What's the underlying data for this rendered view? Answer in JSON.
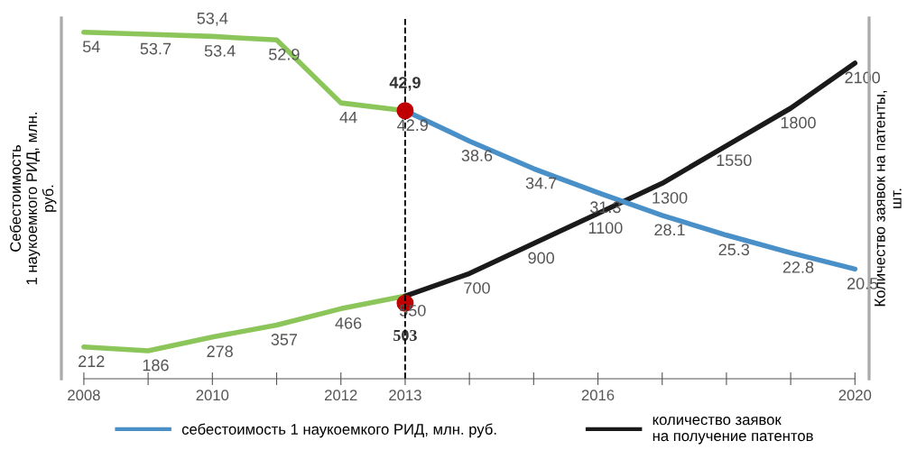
{
  "chart_data": {
    "type": "line",
    "xlabel": null,
    "ylabel": "Себестоимость\n1 наукоемкого РИД, млн.\nруб.",
    "y2label": "Количество заявок на патенты,\nшт.",
    "xlim": [
      2007.65,
      2020.22
    ],
    "xticks": [
      2008,
      {
        "value": 2009,
        "label": null
      },
      2010,
      {
        "value": 2011,
        "label": null
      },
      2012,
      2013,
      {
        "value": 2014,
        "label": null
      },
      {
        "value": 2015,
        "label": null
      },
      2016,
      {
        "value": 2017,
        "label": null
      },
      {
        "value": 2018,
        "label": null
      },
      {
        "value": 2019,
        "label": null
      },
      2020
    ],
    "ylim": [
      5,
      56
    ],
    "y2lim": [
      0,
      2400
    ],
    "tick_labels": "x",
    "grid": false,
    "legend": "bottom",
    "marker": "none",
    "line_style": "solid",
    "series": [
      {
        "color": "#8cc65a",
        "x": [
          2008,
          2009,
          2010,
          2011,
          2012,
          2013
        ],
        "values": [
          54,
          53.7,
          53.4,
          52.9,
          44,
          42.9
        ],
        "value_labels": [
          "54",
          "53.7",
          "53.4",
          "52.9",
          "44",
          null
        ]
      },
      {
        "name": "себестоимость 1 наукоемкого РИД, млн. руб.",
        "color": "#4a90c8",
        "x": [
          2013,
          2014,
          2015,
          2016,
          2017,
          2018,
          2019,
          2020
        ],
        "values": [
          42.9,
          38.6,
          34.7,
          31.3,
          28.1,
          25.3,
          22.8,
          20.5
        ],
        "value_labels": [
          "42.9",
          "38.6",
          "34.7",
          "31.3",
          "28.1",
          "25.3",
          "22.8",
          "20.5"
        ]
      },
      {
        "axis": "y2",
        "color": "#8cc65a",
        "x": [
          2008,
          2009,
          2010,
          2011,
          2012,
          2013
        ],
        "values": [
          212,
          186,
          278,
          357,
          466,
          550
        ],
        "value_labels": [
          "212",
          "186",
          "278",
          "357",
          "466",
          null
        ]
      },
      {
        "axis": "y2",
        "name": "количество заявок\nна получение патентов",
        "color": "#1a1a1a",
        "x": [
          2013,
          2014,
          2015,
          2016,
          2017,
          2018,
          2019,
          2020
        ],
        "values": [
          550,
          700,
          900,
          1100,
          1300,
          1550,
          1800,
          2100
        ],
        "value_labels": [
          "550",
          "700",
          "900",
          "1100",
          "1300",
          "1550",
          "1800",
          "2100"
        ]
      },
      {
        "type": "scatter",
        "marker": "circle",
        "color": "#c00000",
        "x": [
          2013
        ],
        "values": [
          42.9
        ],
        "value_labels": [
          "42,9"
        ]
      },
      {
        "type": "scatter",
        "marker": "circle",
        "axis": "y2",
        "color": "#c00000",
        "x": [
          2013
        ],
        "values": [
          503
        ],
        "value_labels": [
          "503"
        ]
      }
    ],
    "ref_lines": [
      {
        "axis": "x",
        "value": 2013,
        "label": null,
        "color": "#000000",
        "line_style": "dashed"
      }
    ],
    "annotations": [
      {
        "text": "53,4",
        "x": 2010,
        "y": 53.4
      }
    ]
  }
}
